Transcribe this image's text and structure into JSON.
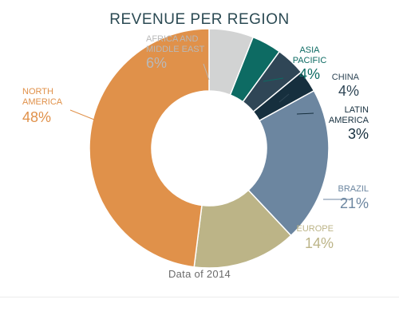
{
  "chart_data": {
    "type": "pie",
    "title": "REVENUE PER REGION",
    "note": "Data of 2014",
    "slices": [
      {
        "label": "AFRICA AND MIDDLE EAST",
        "lines": [
          "AFRICA AND",
          "MIDDLE EAST"
        ],
        "value": 6,
        "value_label": "6%",
        "color": "#d2d3d3",
        "label_color": "#b9b9b9"
      },
      {
        "label": "ASIA PACIFIC",
        "lines": [
          "ASIA",
          "PACIFIC"
        ],
        "value": 4,
        "value_label": "4%",
        "color": "#0d6b63",
        "label_color": "#0d6b63"
      },
      {
        "label": "CHINA",
        "lines": [
          "CHINA"
        ],
        "value": 4,
        "value_label": "4%",
        "color": "#2f4656",
        "label_color": "#2f4656"
      },
      {
        "label": "LATIN AMERICA",
        "lines": [
          "LATIN",
          "AMERICA"
        ],
        "value": 3,
        "value_label": "3%",
        "color": "#162f3e",
        "label_color": "#162f3e"
      },
      {
        "label": "BRAZIL",
        "lines": [
          "BRAZIL"
        ],
        "value": 21,
        "value_label": "21%",
        "color": "#6c86a0",
        "label_color": "#6c86a0"
      },
      {
        "label": "EUROPE",
        "lines": [
          "EUROPE"
        ],
        "value": 14,
        "value_label": "14%",
        "color": "#bcb487",
        "label_color": "#bcb487"
      },
      {
        "label": "NORTH AMERICA",
        "lines": [
          "NORTH",
          "AMERICA"
        ],
        "value": 48,
        "value_label": "48%",
        "color": "#e0914a",
        "label_color": "#e0914a"
      }
    ]
  }
}
